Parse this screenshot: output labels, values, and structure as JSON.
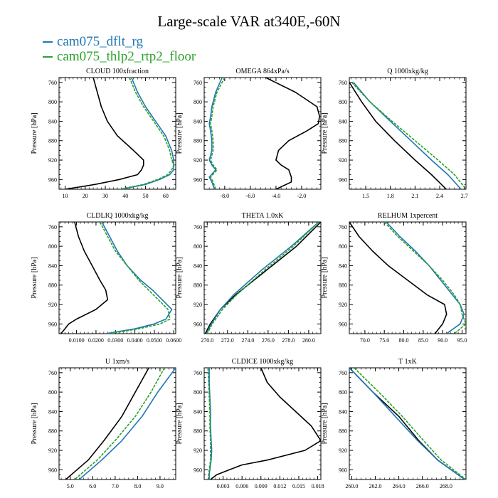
{
  "title": "Large-scale VAR at340E,-60N",
  "legend": [
    {
      "label": "cam075_dflt_rg",
      "color": "#1f77b4"
    },
    {
      "label": "cam075_thlp2_rtp2_floor",
      "color": "#2ca02c"
    }
  ],
  "colors": {
    "control": "#000000"
  },
  "chart_data": [
    {
      "type": "line",
      "title": "CLOUD  100xfraction",
      "ylabel": "Pressure [hPa]",
      "ylim": [
        980,
        750
      ],
      "yticks": [
        760,
        800,
        840,
        880,
        920,
        960
      ],
      "xlim": [
        7,
        65
      ],
      "xticks": [
        10,
        20,
        30,
        40,
        50,
        60
      ],
      "xticklabels": [
        "10",
        "20",
        "30",
        "40",
        "50",
        "60"
      ],
      "y": [
        750,
        780,
        810,
        840,
        870,
        900,
        920,
        930,
        940,
        950,
        960,
        970,
        980
      ],
      "series": [
        {
          "key": "control",
          "values": [
            24,
            26,
            28,
            31,
            36,
            44,
            49,
            49,
            48,
            46,
            37,
            25,
            10
          ]
        },
        {
          "key": "s1",
          "values": [
            43,
            46,
            50,
            55,
            60,
            63,
            64,
            64,
            64,
            62,
            57,
            50,
            38
          ]
        },
        {
          "key": "s2",
          "values": [
            42,
            45,
            49,
            54,
            59,
            62,
            63,
            64,
            63,
            61,
            56,
            49,
            37
          ]
        }
      ]
    },
    {
      "type": "line",
      "title": "OMEGA  864xPa/s",
      "ylabel": "Pressure [hPa]",
      "ylim": [
        980,
        750
      ],
      "yticks": [
        760,
        800,
        840,
        880,
        920,
        960
      ],
      "xlim": [
        -9.6,
        -0.5
      ],
      "xticks": [
        -8,
        -6,
        -4,
        -2
      ],
      "xticklabels": [
        "-8.0",
        "-6.0",
        "-4.0",
        "-2.0"
      ],
      "y": [
        750,
        780,
        810,
        830,
        845,
        860,
        880,
        900,
        920,
        930,
        940,
        955,
        965,
        980
      ],
      "series": [
        {
          "key": "control",
          "values": [
            -4.8,
            -2.5,
            -0.8,
            -0.6,
            -0.7,
            -1.6,
            -3.0,
            -3.8,
            -4.0,
            -3.6,
            -3.0,
            -2.8,
            -2.8,
            -4.0
          ]
        },
        {
          "key": "s1",
          "values": [
            -8.2,
            -8.7,
            -9.0,
            -9.1,
            -9.2,
            -9.1,
            -9.0,
            -9.0,
            -9.2,
            -9.0,
            -8.7,
            -9.2,
            -9.0,
            -8.8
          ]
        },
        {
          "key": "s2",
          "values": [
            -8.0,
            -8.6,
            -8.9,
            -9.0,
            -9.1,
            -9.0,
            -8.9,
            -8.9,
            -9.1,
            -8.9,
            -8.6,
            -9.1,
            -8.9,
            -8.7
          ]
        }
      ]
    },
    {
      "type": "line",
      "title": "Q  1000xkg/kg",
      "ylabel": "Pressure [hPa]",
      "ylim": [
        980,
        750
      ],
      "yticks": [
        760,
        800,
        840,
        880,
        920,
        960
      ],
      "xlim": [
        1.3,
        2.72
      ],
      "xticks": [
        1.5,
        1.8,
        2.1,
        2.4,
        2.7
      ],
      "xticklabels": [
        "1.5",
        "1.8",
        "2.1",
        "2.4",
        "2.7"
      ],
      "y": [
        760,
        800,
        840,
        880,
        920,
        950,
        980
      ],
      "series": [
        {
          "key": "control",
          "values": [
            1.3,
            1.45,
            1.62,
            1.85,
            2.1,
            2.3,
            2.48
          ]
        },
        {
          "key": "s1",
          "values": [
            1.35,
            1.55,
            1.8,
            2.05,
            2.3,
            2.5,
            2.66
          ]
        },
        {
          "key": "s2",
          "values": [
            1.33,
            1.55,
            1.82,
            2.1,
            2.38,
            2.58,
            2.72
          ]
        }
      ]
    },
    {
      "type": "line",
      "title": "CLDLIQ  1000xkg/kg",
      "ylabel": "Pressure [hPa]",
      "ylim": [
        980,
        750
      ],
      "yticks": [
        760,
        800,
        840,
        880,
        920,
        960
      ],
      "xlim": [
        0.001,
        0.061
      ],
      "xticks": [
        0.01,
        0.02,
        0.03,
        0.04,
        0.05,
        0.06
      ],
      "xticklabels": [
        "0.0100",
        "0.0200",
        "0.0300",
        "0.0400",
        "0.0500",
        "0.0600"
      ],
      "y": [
        750,
        780,
        810,
        840,
        870,
        890,
        910,
        930,
        950,
        960,
        970,
        980
      ],
      "series": [
        {
          "key": "control",
          "values": [
            0.009,
            0.011,
            0.014,
            0.018,
            0.022,
            0.025,
            0.026,
            0.02,
            0.01,
            0.006,
            0.004,
            0.002
          ]
        },
        {
          "key": "s1",
          "values": [
            0.023,
            0.027,
            0.031,
            0.036,
            0.043,
            0.049,
            0.054,
            0.059,
            0.056,
            0.05,
            0.04,
            0.025
          ]
        },
        {
          "key": "s2",
          "values": [
            0.022,
            0.026,
            0.03,
            0.036,
            0.042,
            0.047,
            0.052,
            0.057,
            0.058,
            0.053,
            0.042,
            0.027
          ]
        }
      ]
    },
    {
      "type": "line",
      "title": "THETA  1.0xK",
      "ylabel": "Pressure [hPa]",
      "ylim": [
        980,
        750
      ],
      "yticks": [
        760,
        800,
        840,
        880,
        920,
        960
      ],
      "xlim": [
        269.7,
        281.2
      ],
      "xticks": [
        270,
        272,
        274,
        276,
        278,
        280
      ],
      "xticklabels": [
        "270.0",
        "272.0",
        "274.0",
        "276.0",
        "278.0",
        "280.0"
      ],
      "y": [
        750,
        800,
        850,
        900,
        930,
        960,
        980
      ],
      "series": [
        {
          "key": "control",
          "values": [
            281.2,
            278.8,
            275.8,
            272.8,
            271.3,
            270.3,
            269.8
          ]
        },
        {
          "key": "s1",
          "values": [
            281.0,
            278.3,
            275.3,
            272.6,
            271.3,
            270.4,
            269.9
          ]
        },
        {
          "key": "s2",
          "values": [
            281.0,
            278.5,
            275.6,
            272.9,
            271.5,
            270.5,
            270.0
          ]
        }
      ]
    },
    {
      "type": "line",
      "title": "RELHUM  1xpercent",
      "ylabel": "Pressure [hPa]",
      "ylim": [
        980,
        750
      ],
      "yticks": [
        760,
        800,
        840,
        880,
        920,
        960
      ],
      "xlim": [
        66,
        96
      ],
      "xticks": [
        70,
        75,
        80,
        85,
        90,
        95
      ],
      "xticklabels": [
        "70.0",
        "75.0",
        "80.0",
        "85.0",
        "90.0",
        "95.0"
      ],
      "y": [
        750,
        780,
        810,
        840,
        870,
        900,
        920,
        940,
        960,
        980
      ],
      "series": [
        {
          "key": "control",
          "values": [
            66,
            68.5,
            72,
            76,
            81,
            86,
            90.5,
            91,
            90,
            88
          ]
        },
        {
          "key": "s1",
          "values": [
            75.5,
            79,
            83,
            86.5,
            89.5,
            92.5,
            94.5,
            95.5,
            94.5,
            91
          ]
        },
        {
          "key": "s2",
          "values": [
            75,
            78.5,
            82.5,
            86.5,
            90,
            93,
            94.5,
            95,
            96,
            93
          ]
        }
      ]
    },
    {
      "type": "line",
      "title": "U  1xm/s",
      "ylabel": "Pressure [hPa]",
      "ylim": [
        980,
        750
      ],
      "yticks": [
        760,
        800,
        840,
        880,
        920,
        960
      ],
      "xlim": [
        4.5,
        9.7
      ],
      "xticks": [
        5,
        6,
        7,
        8,
        9
      ],
      "xticklabels": [
        "5.0",
        "6.0",
        "7.0",
        "8.0",
        "9.0"
      ],
      "y": [
        750,
        800,
        850,
        900,
        940,
        960,
        980
      ],
      "series": [
        {
          "key": "control",
          "values": [
            8.5,
            7.9,
            7.3,
            6.5,
            5.8,
            5.3,
            4.8
          ]
        },
        {
          "key": "s1",
          "values": [
            9.7,
            8.9,
            8.2,
            7.3,
            6.4,
            5.9,
            5.4
          ]
        },
        {
          "key": "s2",
          "values": [
            9.2,
            8.6,
            7.9,
            7.0,
            6.2,
            5.7,
            5.2
          ]
        }
      ]
    },
    {
      "type": "line",
      "title": "CLDICE  1000xkg/kg",
      "ylabel": "Pressure [hPa]",
      "ylim": [
        980,
        750
      ],
      "yticks": [
        760,
        800,
        840,
        880,
        920,
        960
      ],
      "xlim": [
        0,
        0.0185
      ],
      "xticks": [
        0.003,
        0.006,
        0.009,
        0.012,
        0.015,
        0.018
      ],
      "xticklabels": [
        "0.003",
        "0.006",
        "0.009",
        "0.012",
        "0.015",
        "0.018"
      ],
      "y": [
        750,
        780,
        810,
        840,
        870,
        900,
        920,
        940,
        950,
        960,
        970,
        980
      ],
      "series": [
        {
          "key": "control",
          "values": [
            0.009,
            0.01,
            0.012,
            0.0145,
            0.017,
            0.0185,
            0.016,
            0.01,
            0.006,
            0.004,
            0.002,
            0.001
          ]
        },
        {
          "key": "s1",
          "values": [
            0.0008,
            0.0008,
            0.0009,
            0.001,
            0.001,
            0.0011,
            0.0012,
            0.0011,
            0.001,
            0.0009,
            0.0008,
            0.0008
          ]
        },
        {
          "key": "s2",
          "values": [
            0.0006,
            0.0007,
            0.0008,
            0.0009,
            0.0009,
            0.001,
            0.001,
            0.001,
            0.0009,
            0.0008,
            0.0007,
            0.0007
          ]
        }
      ]
    },
    {
      "type": "line",
      "title": "T  1xK",
      "ylabel": "Pressure [hPa]",
      "ylim": [
        980,
        750
      ],
      "yticks": [
        760,
        800,
        840,
        880,
        920,
        960
      ],
      "xlim": [
        259.8,
        269.7
      ],
      "xticks": [
        260,
        262,
        264,
        266,
        268
      ],
      "xticklabels": [
        "260.0",
        "262.0",
        "264.0",
        "266.0",
        "268.0"
      ],
      "y": [
        750,
        800,
        850,
        900,
        940,
        980
      ],
      "series": [
        {
          "key": "control",
          "values": [
            259.8,
            261.8,
            264.0,
            265.7,
            267.3,
            269.6
          ]
        },
        {
          "key": "s1",
          "values": [
            259.8,
            261.8,
            263.7,
            265.6,
            267.3,
            269.6
          ]
        },
        {
          "key": "s2",
          "values": [
            260.2,
            262.3,
            264.3,
            266.1,
            267.6,
            269.7
          ]
        }
      ]
    }
  ]
}
